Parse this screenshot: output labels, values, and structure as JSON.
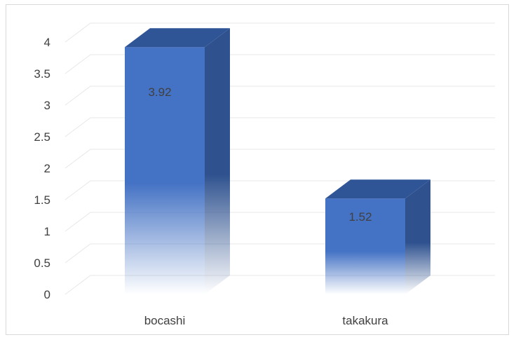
{
  "chart_data": {
    "type": "bar",
    "style": "3d-column",
    "categories": [
      "bocashi",
      "takakura"
    ],
    "values": [
      3.92,
      1.52
    ],
    "data_labels": [
      "3.92",
      "1.52"
    ],
    "title": "",
    "xlabel": "",
    "ylabel": "",
    "ylim": [
      0,
      4
    ],
    "yticks": [
      "0",
      "0.5",
      "1",
      "1.5",
      "2",
      "2.5",
      "3",
      "3.5",
      "4"
    ],
    "grid": true,
    "legend": "none",
    "colors": {
      "bar_front": "#4472c4",
      "bar_side": "#2f528f",
      "bar_top": "#2f5597",
      "grid": "#e7e7e7",
      "text": "#404040"
    }
  }
}
